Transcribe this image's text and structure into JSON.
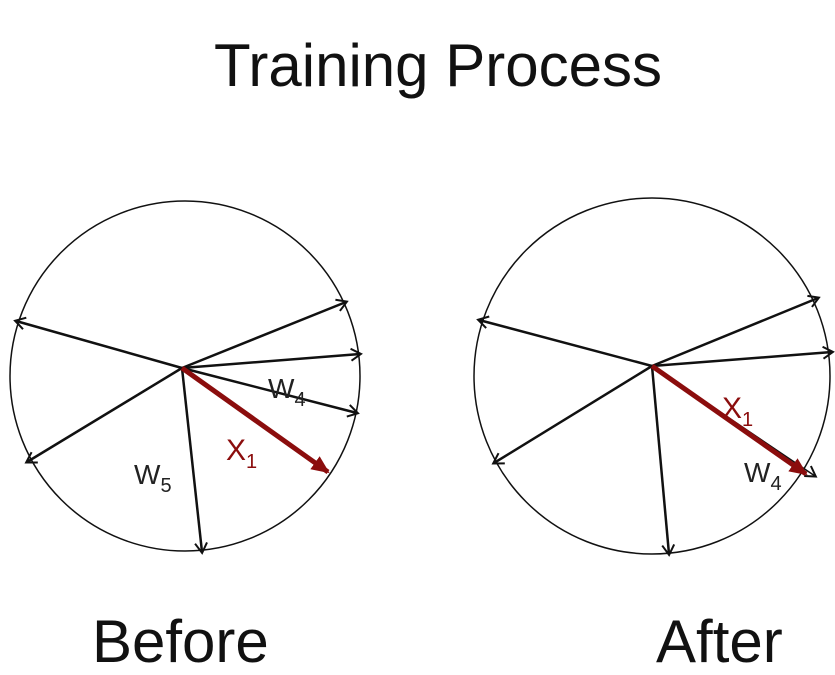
{
  "title": "Training Process",
  "panels": {
    "before": {
      "caption": "Before",
      "labels": {
        "w4": {
          "main": "W",
          "sub": "4"
        },
        "w5": {
          "main": "W",
          "sub": "5"
        },
        "x1": {
          "main": "X",
          "sub": "1"
        }
      }
    },
    "after": {
      "caption": "After",
      "labels": {
        "w4": {
          "main": "W",
          "sub": "4"
        },
        "x1": {
          "main": "X",
          "sub": "1"
        }
      }
    }
  },
  "colors": {
    "weight_vector": "#111111",
    "input_vector": "#8b0d0d",
    "circle": "#111111"
  }
}
